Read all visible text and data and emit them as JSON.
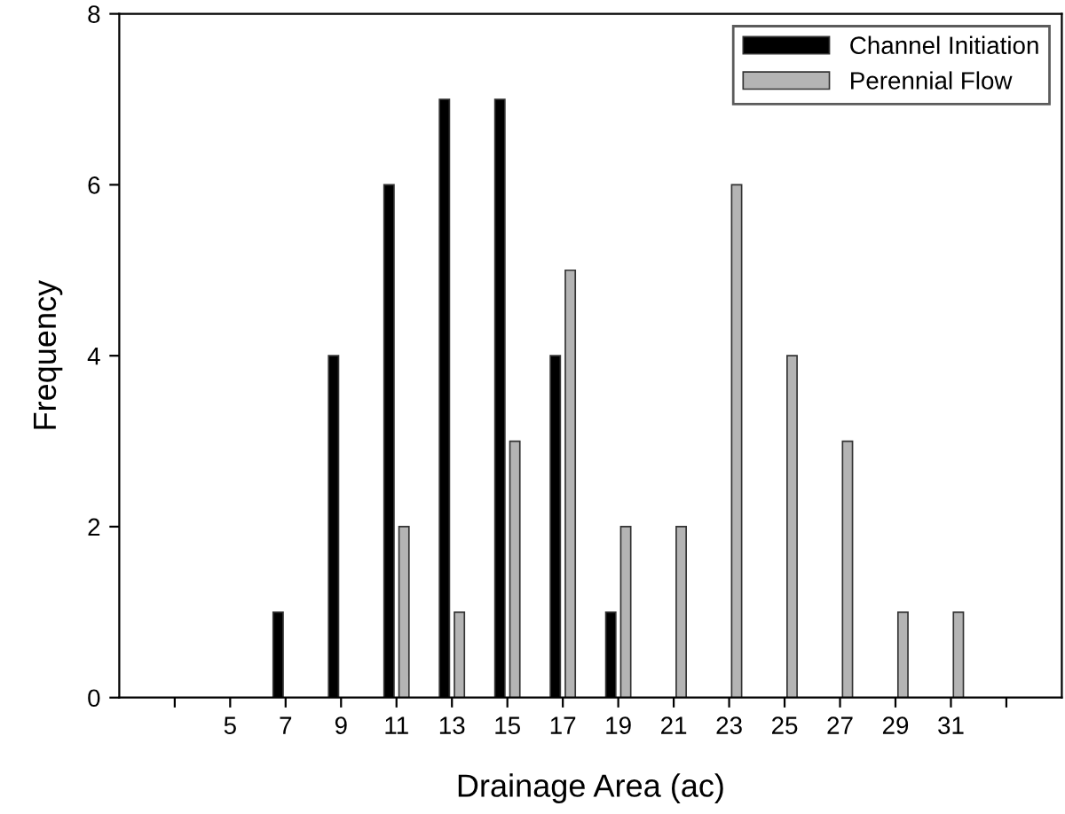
{
  "chart_data": {
    "type": "bar",
    "xlabel": "Drainage Area (ac)",
    "ylabel": "Frequency",
    "series": [
      {
        "name": "Channel Initiation",
        "color": "#000000",
        "x": [
          7,
          9,
          11,
          13,
          15,
          17,
          19
        ],
        "values": [
          1,
          4,
          6,
          7,
          7,
          4,
          1
        ]
      },
      {
        "name": "Perennial Flow",
        "color": "#b4b4b4",
        "x": [
          11,
          13,
          15,
          17,
          19,
          21,
          23,
          25,
          27,
          29,
          31
        ],
        "values": [
          2,
          1,
          3,
          5,
          2,
          2,
          6,
          4,
          3,
          1,
          1
        ]
      }
    ],
    "xlim": [
      1,
      35
    ],
    "xticks": [
      {
        "value": 3,
        "label": null
      },
      5,
      7,
      9,
      11,
      13,
      15,
      17,
      19,
      21,
      23,
      25,
      27,
      29,
      31,
      {
        "value": 33,
        "label": null
      }
    ],
    "ylim": [
      0,
      8
    ],
    "yticks": [
      0,
      2,
      4,
      6,
      8
    ],
    "grid": false,
    "legend": "top right"
  }
}
